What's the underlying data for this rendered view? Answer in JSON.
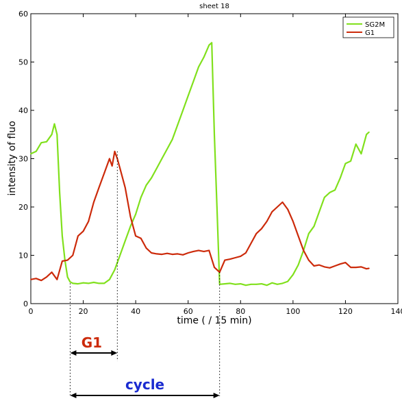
{
  "chart_data": {
    "type": "line",
    "title": "sheet 18",
    "xlabel": "time ( / 15 min)",
    "ylabel": "intensity of fluo",
    "xlim": [
      0,
      140
    ],
    "ylim": [
      0,
      60
    ],
    "xticks": [
      0,
      20,
      40,
      60,
      80,
      100,
      120,
      140
    ],
    "yticks": [
      0,
      10,
      20,
      30,
      40,
      50,
      60
    ],
    "grid": false,
    "legend_position": "top-right",
    "series": [
      {
        "name": "SG2M",
        "color": "#80e01c",
        "x": [
          0,
          2,
          4,
          6,
          8,
          9,
          10,
          11,
          12,
          13,
          14,
          15,
          16,
          18,
          20,
          22,
          24,
          26,
          28,
          30,
          32,
          34,
          36,
          38,
          40,
          42,
          44,
          46,
          48,
          50,
          52,
          54,
          56,
          58,
          60,
          62,
          64,
          66,
          68,
          69,
          70,
          71,
          72,
          74,
          76,
          78,
          80,
          82,
          84,
          86,
          88,
          90,
          92,
          94,
          96,
          98,
          100,
          102,
          104,
          106,
          108,
          110,
          112,
          114,
          116,
          118,
          120,
          122,
          124,
          126,
          128,
          129
        ],
        "y": [
          31,
          31.5,
          33.3,
          33.5,
          35,
          37.2,
          35,
          23,
          14,
          9,
          5.5,
          4.5,
          4.2,
          4.1,
          4.3,
          4.2,
          4.4,
          4.2,
          4.2,
          5,
          7,
          10,
          13,
          16,
          18.5,
          22,
          24.5,
          26,
          28,
          30,
          32,
          34,
          37,
          40,
          43,
          46,
          49,
          51,
          53.5,
          54,
          35,
          20,
          4,
          4.1,
          4.2,
          4,
          4.1,
          3.8,
          4,
          4,
          4.1,
          3.8,
          4.3,
          4,
          4.2,
          4.6,
          6,
          8,
          11,
          14.5,
          16,
          19,
          22,
          23,
          23.5,
          26,
          29,
          29.5,
          33,
          31,
          35,
          35.5
        ]
      },
      {
        "name": "G1",
        "color": "#cc2a0a",
        "x": [
          0,
          2,
          4,
          6,
          8,
          10,
          12,
          14,
          16,
          18,
          20,
          22,
          24,
          26,
          28,
          30,
          31,
          32,
          33,
          34,
          36,
          38,
          40,
          42,
          44,
          46,
          48,
          50,
          52,
          54,
          56,
          58,
          60,
          62,
          64,
          66,
          68,
          70,
          72,
          74,
          76,
          78,
          80,
          82,
          84,
          86,
          88,
          90,
          92,
          94,
          96,
          98,
          100,
          102,
          104,
          106,
          108,
          110,
          112,
          114,
          116,
          118,
          120,
          122,
          124,
          126,
          128,
          129
        ],
        "y": [
          5,
          5.2,
          4.8,
          5.5,
          6.5,
          5,
          8.8,
          9,
          10,
          14,
          15,
          17,
          21,
          24,
          27,
          30,
          28.5,
          31.5,
          30,
          28,
          24,
          18,
          14,
          13.5,
          11.5,
          10.5,
          10.3,
          10.2,
          10.4,
          10.2,
          10.3,
          10.1,
          10.5,
          10.8,
          11,
          10.8,
          11,
          7.5,
          6.5,
          9,
          9.2,
          9.5,
          9.8,
          10.5,
          12.5,
          14.5,
          15.5,
          17,
          19,
          20,
          21,
          19.5,
          17,
          14,
          11,
          9,
          7.8,
          8,
          7.6,
          7.4,
          7.8,
          8.2,
          8.5,
          7.5,
          7.5,
          7.6,
          7.2,
          7.3
        ]
      }
    ],
    "annotations": [
      {
        "text": "G1",
        "color": "#cc2a0a",
        "from_x": 15,
        "to_x": 33
      },
      {
        "text": "cycle",
        "color": "#1a2bd0",
        "from_x": 15,
        "to_x": 72
      }
    ]
  }
}
